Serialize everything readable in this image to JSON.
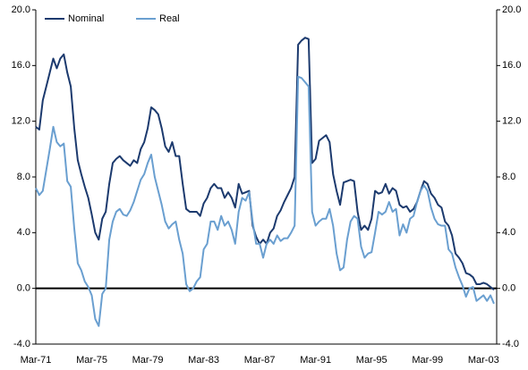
{
  "chart_data": {
    "type": "line",
    "categories": [
      "Mar-71",
      null,
      null,
      null,
      null,
      null,
      null,
      null,
      null,
      null,
      null,
      null,
      null,
      null,
      null,
      null,
      "Mar-75",
      null,
      null,
      null,
      null,
      null,
      null,
      null,
      null,
      null,
      null,
      null,
      null,
      null,
      null,
      null,
      "Mar-79",
      null,
      null,
      null,
      null,
      null,
      null,
      null,
      null,
      null,
      null,
      null,
      null,
      null,
      null,
      null,
      "Mar-83",
      null,
      null,
      null,
      null,
      null,
      null,
      null,
      null,
      null,
      null,
      null,
      null,
      null,
      null,
      null,
      "Mar-87",
      null,
      null,
      null,
      null,
      null,
      null,
      null,
      null,
      null,
      null,
      null,
      null,
      null,
      null,
      null,
      "Mar-91",
      null,
      null,
      null,
      null,
      null,
      null,
      null,
      null,
      null,
      null,
      null,
      null,
      null,
      null,
      null,
      "Mar-95",
      null,
      null,
      null,
      null,
      null,
      null,
      null,
      null,
      null,
      null,
      null,
      null,
      null,
      null,
      null,
      "Mar-99",
      null,
      null,
      null,
      null,
      null,
      null,
      null,
      null,
      null,
      null,
      null,
      null,
      null,
      null,
      null,
      "Mar-03",
      null,
      null,
      null
    ],
    "series": [
      {
        "name": "Nominal",
        "color": "#1c3a6e",
        "values": [
          11.6,
          11.4,
          13.5,
          14.5,
          15.5,
          16.5,
          15.8,
          16.5,
          16.8,
          15.5,
          14.5,
          11.5,
          9.2,
          8.2,
          7.3,
          6.5,
          5.3,
          4.0,
          3.5,
          5.0,
          5.5,
          7.5,
          9.0,
          9.3,
          9.5,
          9.2,
          9.0,
          8.8,
          9.2,
          9.0,
          10.0,
          10.5,
          11.5,
          13.0,
          12.8,
          12.5,
          11.5,
          10.2,
          9.8,
          10.5,
          9.5,
          9.5,
          7.5,
          5.7,
          5.5,
          5.5,
          5.5,
          5.2,
          6.1,
          6.5,
          7.2,
          7.5,
          7.2,
          7.2,
          6.5,
          6.9,
          6.5,
          5.8,
          7.5,
          6.8,
          6.9,
          7.0,
          4.5,
          3.7,
          3.2,
          3.5,
          3.2,
          4.0,
          4.3,
          5.2,
          5.6,
          6.2,
          6.7,
          7.2,
          8.0,
          17.5,
          17.8,
          18.0,
          17.9,
          9.0,
          9.3,
          10.6,
          10.8,
          11.0,
          10.5,
          8.2,
          7.0,
          6.0,
          7.6,
          7.7,
          7.8,
          7.7,
          5.5,
          4.2,
          4.5,
          4.2,
          5.0,
          7.0,
          6.8,
          6.9,
          7.5,
          6.8,
          7.2,
          7.0,
          6.0,
          5.8,
          5.9,
          5.5,
          5.7,
          6.2,
          7.0,
          7.7,
          7.5,
          6.8,
          6.5,
          6.0,
          5.8,
          4.8,
          4.5,
          3.8,
          2.5,
          2.2,
          1.8,
          1.1,
          1.0,
          0.8,
          0.3,
          0.3,
          0.4,
          0.3,
          0.1,
          -0.1
        ]
      },
      {
        "name": "Real",
        "color": "#6a9fd0",
        "values": [
          7.2,
          6.7,
          7.0,
          8.5,
          10.0,
          11.6,
          10.5,
          10.2,
          10.4,
          7.7,
          7.3,
          4.3,
          1.8,
          1.3,
          0.5,
          0.1,
          -0.5,
          -2.2,
          -2.7,
          -0.4,
          0.0,
          3.5,
          4.8,
          5.5,
          5.7,
          5.3,
          5.2,
          5.6,
          6.2,
          7.0,
          7.8,
          8.2,
          9.0,
          9.6,
          8.0,
          7.0,
          6.0,
          4.8,
          4.3,
          4.6,
          4.8,
          3.5,
          2.5,
          0.3,
          -0.2,
          0.0,
          0.5,
          0.8,
          2.8,
          3.2,
          4.8,
          4.8,
          4.2,
          5.2,
          4.5,
          4.8,
          4.2,
          3.2,
          5.5,
          6.5,
          6.3,
          6.9,
          4.8,
          3.2,
          3.2,
          2.2,
          3.2,
          3.5,
          3.2,
          3.8,
          3.4,
          3.6,
          3.6,
          4.0,
          4.5,
          15.2,
          15.1,
          14.8,
          14.5,
          5.5,
          4.5,
          4.8,
          5.0,
          5.0,
          5.7,
          4.5,
          2.5,
          1.3,
          1.5,
          3.5,
          4.8,
          5.2,
          5.0,
          3.0,
          2.2,
          2.5,
          2.6,
          4.0,
          5.5,
          5.3,
          5.5,
          6.2,
          5.5,
          5.7,
          3.8,
          4.6,
          4.0,
          5.0,
          5.2,
          6.2,
          7.0,
          7.4,
          7.0,
          5.8,
          5.0,
          4.6,
          4.5,
          4.5,
          2.8,
          2.5,
          1.5,
          0.8,
          0.2,
          -0.6,
          0.0,
          0.1,
          -0.9,
          -0.7,
          -0.5,
          -0.9,
          -0.5,
          -1.1
        ]
      }
    ],
    "ylim": [
      -4,
      20
    ],
    "yticks": [
      {
        "value": -4,
        "label": "-4.0"
      },
      {
        "value": 0,
        "label": "0.0"
      },
      {
        "value": 4,
        "label": "4.0"
      },
      {
        "value": 8,
        "label": "8.0"
      },
      {
        "value": 12,
        "label": "12.0"
      },
      {
        "value": 16,
        "label": "16.0"
      },
      {
        "value": 20,
        "label": "20.0"
      }
    ],
    "y2lim": [
      -4,
      20
    ],
    "y2ticks": [
      {
        "value": -4,
        "label": "-4.0"
      },
      {
        "value": 0,
        "label": "0.0"
      },
      {
        "value": 4,
        "label": "4.0"
      },
      {
        "value": 8,
        "label": "8.0"
      },
      {
        "value": 12,
        "label": "12.0"
      },
      {
        "value": 16,
        "label": "16.0"
      },
      {
        "value": 20,
        "label": "20.0"
      }
    ],
    "legend": "upper left"
  }
}
